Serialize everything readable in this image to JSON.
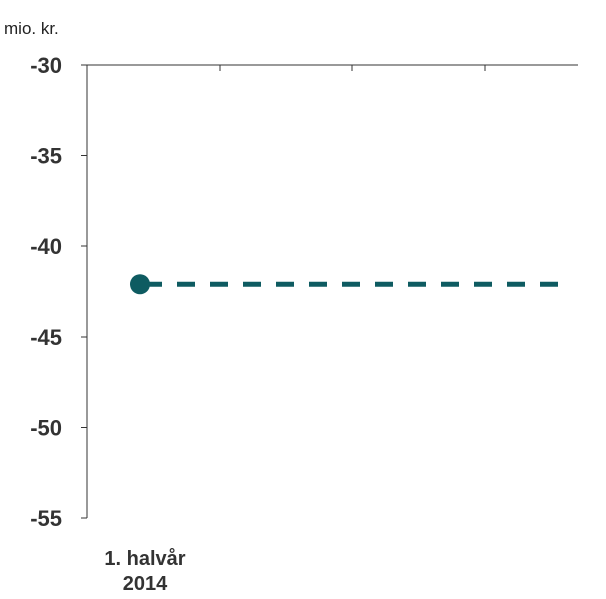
{
  "chart_data": {
    "type": "line",
    "unit_label": "mio. kr.",
    "ylim": [
      -55,
      -30
    ],
    "y_ticks": [
      -30,
      -35,
      -40,
      -45,
      -50,
      -55
    ],
    "y_tick_labels": [
      "-30",
      "-35",
      "-40",
      "-45",
      "-50",
      "-55"
    ],
    "x_positions": 4,
    "x_tick_labels": [
      [
        "1. halvår",
        "2014"
      ],
      [],
      [],
      []
    ],
    "series": [
      {
        "points": [
          {
            "x": 0,
            "y": -42.1
          }
        ],
        "projection": {
          "from_x": 0,
          "to_x": 3,
          "y": -42.1,
          "style": "dashed"
        },
        "color": "#0e5b61"
      }
    ],
    "grid": false,
    "legend": "none"
  }
}
